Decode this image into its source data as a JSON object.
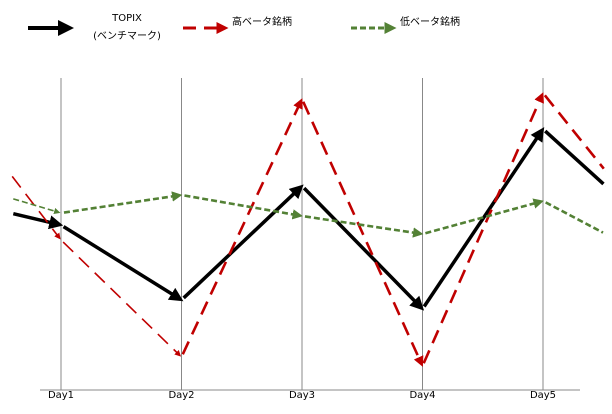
{
  "chart_data": {
    "type": "line",
    "title": "",
    "xlabel": "",
    "ylabel": "",
    "categories": [
      "Day1",
      "Day2",
      "Day3",
      "Day4",
      "Day5"
    ],
    "x": [
      0.58,
      1,
      2,
      3,
      4,
      5,
      5.52
    ],
    "ylim": [
      0,
      104
    ],
    "grid": "vertical",
    "legend_position": "top",
    "series": [
      {
        "name": "TOPIX",
        "name_line2": "(ベンチマーク)",
        "color": "#000000",
        "style": "solid-arrow",
        "values": [
          59,
          55,
          30,
          68,
          27,
          87,
          68
        ]
      },
      {
        "name": "高ベータ銘柄",
        "color": "#c00000",
        "style": "dashed-arrow",
        "values": [
          72,
          50,
          11,
          97,
          8,
          99,
          73
        ]
      },
      {
        "name": "低ベータ銘柄",
        "color": "#538135",
        "style": "dotted-arrow",
        "values": [
          64,
          59,
          65,
          58,
          52,
          63,
          52
        ]
      }
    ]
  }
}
